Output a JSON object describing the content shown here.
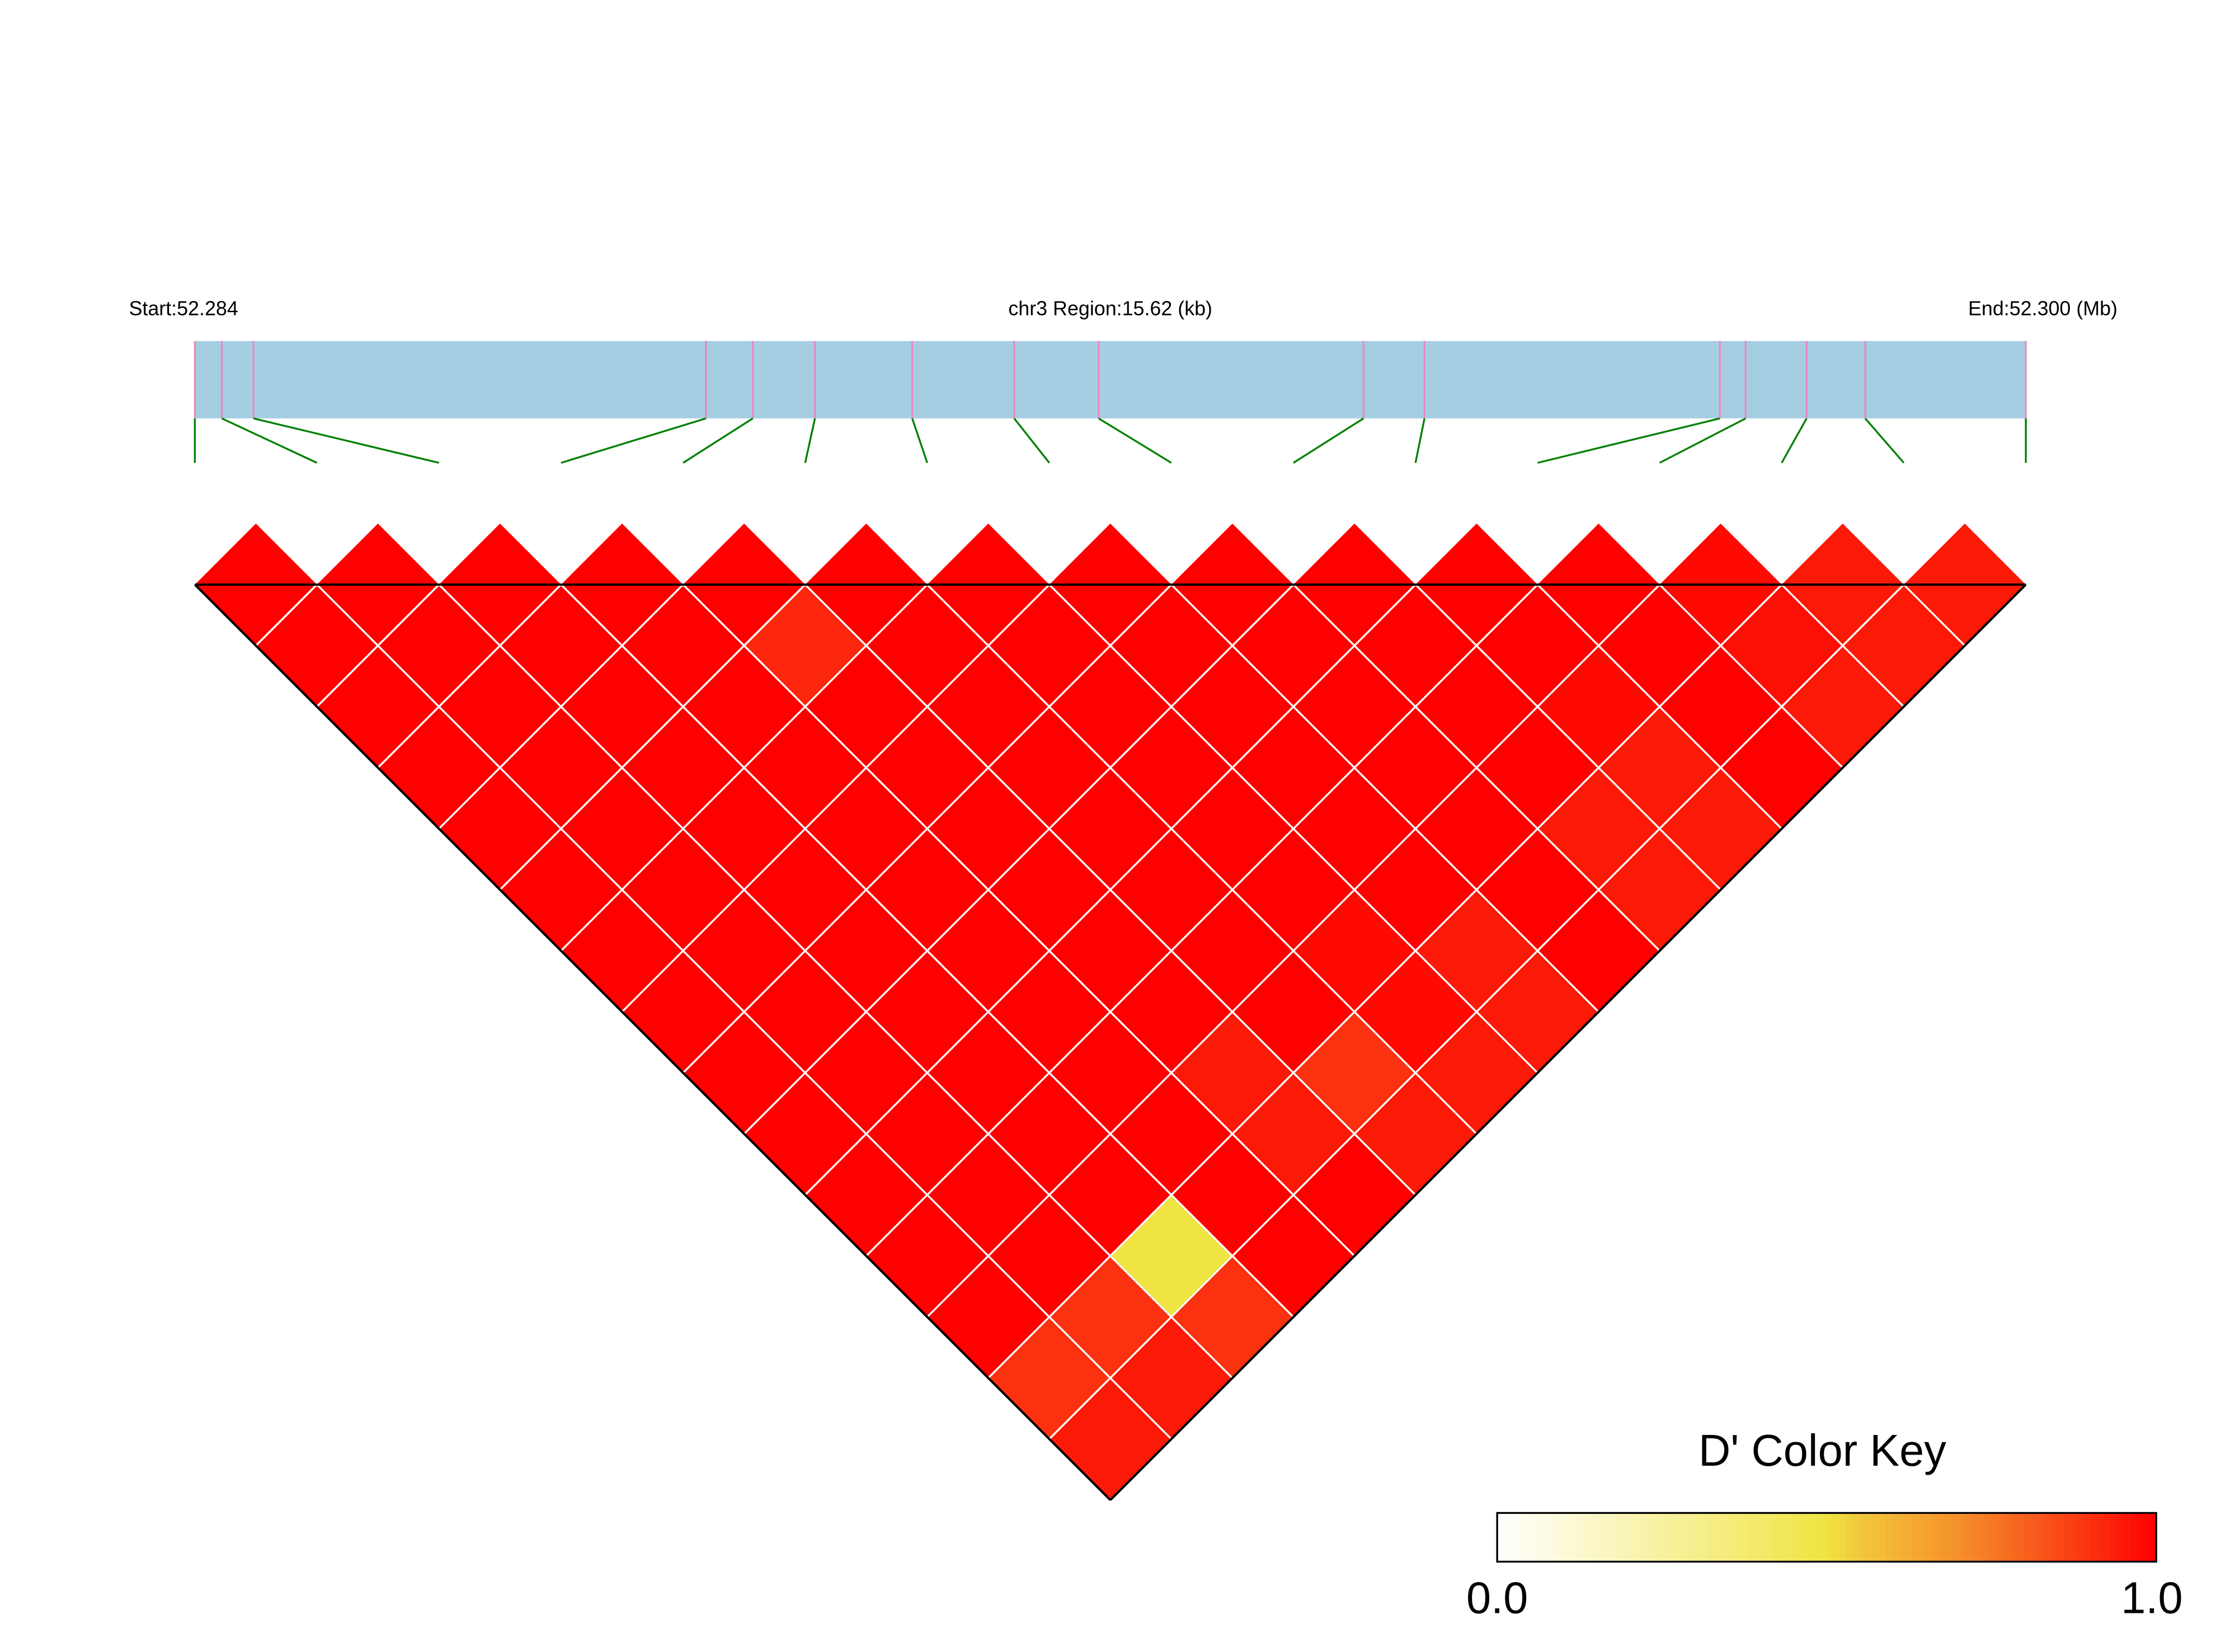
{
  "chart_data": {
    "type": "heatmap",
    "title": "",
    "measure": "D'",
    "region": {
      "chromosome": "chr3",
      "start_label": "Start:52.284",
      "region_label": "chr3 Region:15.62 (kb)",
      "end_label": "End:52.300 (Mb)",
      "start_mb": 52.284,
      "end_mb": 52.3,
      "length_kb": 15.62
    },
    "snp_positions_mb": [
      52.284,
      52.28423,
      52.2845,
      52.28836,
      52.28876,
      52.28929,
      52.29012,
      52.29099,
      52.29171,
      52.29397,
      52.29449,
      52.29701,
      52.29723,
      52.29775,
      52.29825,
      52.29962
    ],
    "dprime_upper_triangle": [
      [
        1,
        1,
        1,
        1,
        1,
        1,
        1,
        1,
        1,
        1,
        1,
        1,
        1,
        0.9,
        0.95
      ],
      [
        1,
        1,
        1,
        1,
        1,
        1,
        1,
        1,
        1,
        1,
        1,
        1,
        0.9,
        0.95
      ],
      [
        1,
        1,
        1,
        1,
        1,
        1,
        1,
        1,
        1,
        1,
        1,
        0.5,
        0.9
      ],
      [
        1,
        1,
        1,
        1,
        1,
        1,
        1,
        1,
        1,
        1,
        1,
        1
      ],
      [
        1,
        0.92,
        1,
        1,
        1,
        1,
        1,
        1,
        0.95,
        0.95,
        1
      ],
      [
        1,
        1,
        1,
        1,
        1,
        1,
        1,
        1,
        0.9,
        0.95
      ],
      [
        1,
        1,
        1,
        1,
        1,
        1,
        0.98,
        0.98,
        0.95
      ],
      [
        1,
        1,
        1,
        1,
        1,
        1,
        0.95,
        0.95
      ],
      [
        1,
        1,
        1,
        1,
        1,
        1,
        1
      ],
      [
        1,
        1,
        1,
        1,
        0.95,
        0.95
      ],
      [
        1,
        1,
        0.98,
        0.95,
        0.95
      ],
      [
        1,
        1,
        1,
        1
      ],
      [
        0.98,
        0.97,
        0.95
      ],
      [
        0.95,
        0.95
      ],
      [
        0.95
      ]
    ],
    "color_key": {
      "title": "D' Color Key",
      "min_label": "0.0",
      "max_label": "1.0",
      "range": [
        0,
        1
      ],
      "colors": {
        "low": "#FFFFFF",
        "mid": "#F0E442",
        "high": "#FF0000"
      }
    },
    "colors": {
      "gene_bar": "#A6CEE3",
      "snp_tick": "#E78AC3",
      "connector": "#008000",
      "cell_border": "#FFFFFF",
      "outline": "#000000"
    }
  }
}
